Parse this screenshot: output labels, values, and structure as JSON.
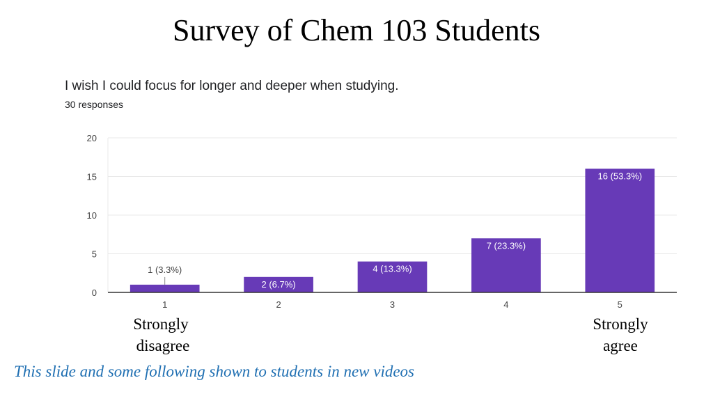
{
  "slide": {
    "title": "Survey of Chem 103 Students",
    "footer_note": "This slide and some following shown to students in new videos"
  },
  "chart_data": {
    "type": "bar",
    "title": "I wish I could focus for longer and deeper when studying.",
    "subtitle": "30 responses",
    "categories": [
      "1",
      "2",
      "3",
      "4",
      "5"
    ],
    "values": [
      1,
      2,
      4,
      7,
      16
    ],
    "data_labels": [
      "1 (3.3%)",
      "2 (6.7%)",
      "4 (13.3%)",
      "7 (23.3%)",
      "16 (53.3%)"
    ],
    "ylim": [
      0,
      20
    ],
    "yticks": [
      0,
      5,
      10,
      15,
      20
    ],
    "grid": true,
    "xlabel": "",
    "ylabel": "",
    "bar_color": "#673ab7",
    "x_end_labels": {
      "low_line1": "Strongly",
      "low_line2": "disagree",
      "high_line1": "Strongly",
      "high_line2": "agree"
    }
  }
}
